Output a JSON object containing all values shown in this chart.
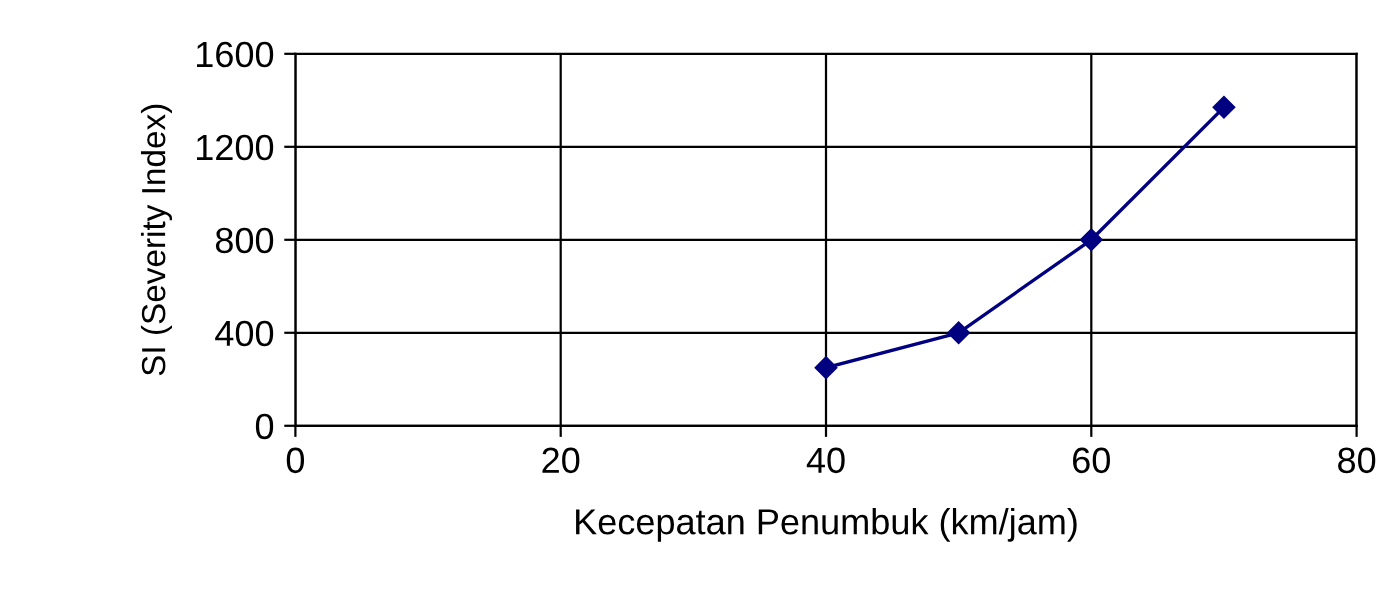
{
  "chart_data": {
    "type": "line",
    "xlabel": "Kecepatan Penumbuk (km/jam)",
    "ylabel": "SI (Severity Index)",
    "x": [
      40,
      50,
      60,
      70
    ],
    "series": [
      {
        "color": "#000080",
        "values": [
          250,
          400,
          800,
          1370
        ]
      }
    ],
    "xlim": [
      0,
      80
    ],
    "xticks": [
      0,
      20,
      40,
      60,
      80
    ],
    "ylim": [
      0,
      1600
    ],
    "yticks": [
      0,
      400,
      800,
      1200,
      1600
    ],
    "grid": true,
    "marker": "diamond",
    "line_style": "solid"
  }
}
